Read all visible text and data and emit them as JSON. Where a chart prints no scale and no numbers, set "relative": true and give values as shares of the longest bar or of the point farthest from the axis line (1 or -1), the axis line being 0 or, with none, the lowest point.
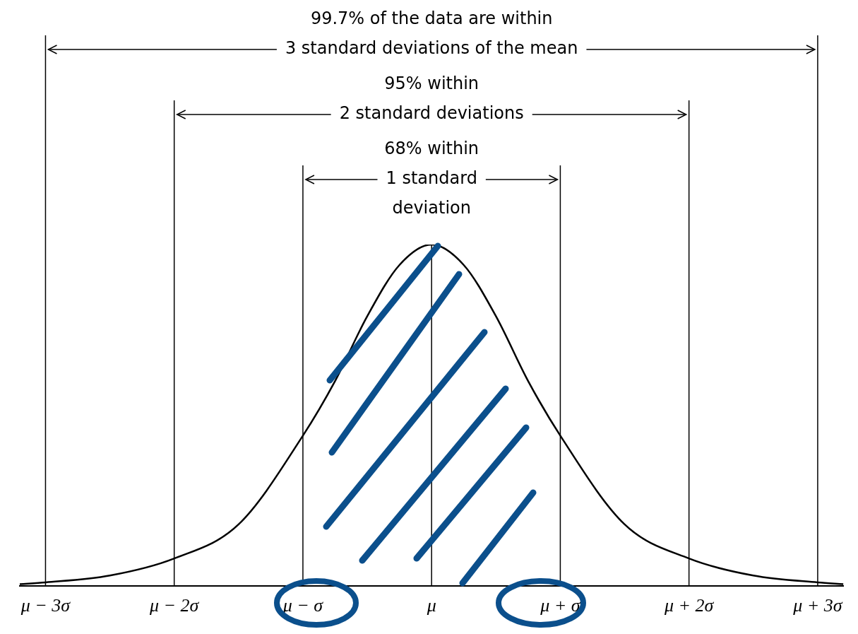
{
  "chart_data": {
    "type": "line",
    "relative": true,
    "color": "#000000",
    "x": [
      -3.2,
      -3,
      -2.5,
      -2,
      -1.5,
      -1,
      -0.75,
      -0.5,
      -0.25,
      0,
      0.25,
      0.5,
      0.75,
      1,
      1.5,
      2,
      2.5,
      3,
      3.2
    ],
    "values": [
      0.005,
      0.01,
      0.03,
      0.08,
      0.18,
      0.44,
      0.6,
      0.79,
      0.94,
      1,
      0.94,
      0.79,
      0.6,
      0.44,
      0.18,
      0.08,
      0.03,
      0.01,
      0.005
    ],
    "xlim": [
      -3.2,
      3.2
    ],
    "xticks": [
      {
        "value": -3,
        "label": "μ − 3σ"
      },
      {
        "value": -2,
        "label": "μ − 2σ"
      },
      {
        "value": -1,
        "label": "μ − σ"
      },
      {
        "value": 0,
        "label": "μ"
      },
      {
        "value": 1,
        "label": "μ + σ"
      },
      {
        "value": 2,
        "label": "μ + 2σ"
      },
      {
        "value": 3,
        "label": "μ + 3σ"
      }
    ],
    "ref_lines": [
      {
        "axis": "x",
        "value": -3
      },
      {
        "axis": "x",
        "value": -2
      },
      {
        "axis": "x",
        "value": -1
      },
      {
        "axis": "x",
        "value": 0
      },
      {
        "axis": "x",
        "value": 1
      },
      {
        "axis": "x",
        "value": 2
      },
      {
        "axis": "x",
        "value": 3
      }
    ],
    "annotations": [
      "99.7% of the data are within\n3 standard deviations of the mean",
      "95% within\n2 standard deviations",
      "68% within\n1 standard\ndeviation"
    ]
  }
}
